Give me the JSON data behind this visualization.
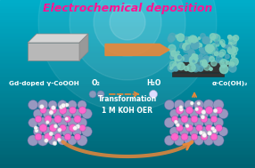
{
  "title": "Electrochemical deposition",
  "title_color": "#FF1493",
  "title_fontsize": 9,
  "label_gd": "Gd-doped γ-CoOOH",
  "label_alpha": "α-Co(OH)₂",
  "label_o2": "O₂",
  "label_h2o": "H₂O",
  "label_transform": "Transformation\n1 M KOH OER",
  "arrow_color": "#E8873A",
  "ball_large_color": "#9898C0",
  "ball_small_color": "#FF66CC",
  "ball_white_color": "#FFFFFF",
  "figsize": [
    2.86,
    1.89
  ],
  "dpi": 100
}
